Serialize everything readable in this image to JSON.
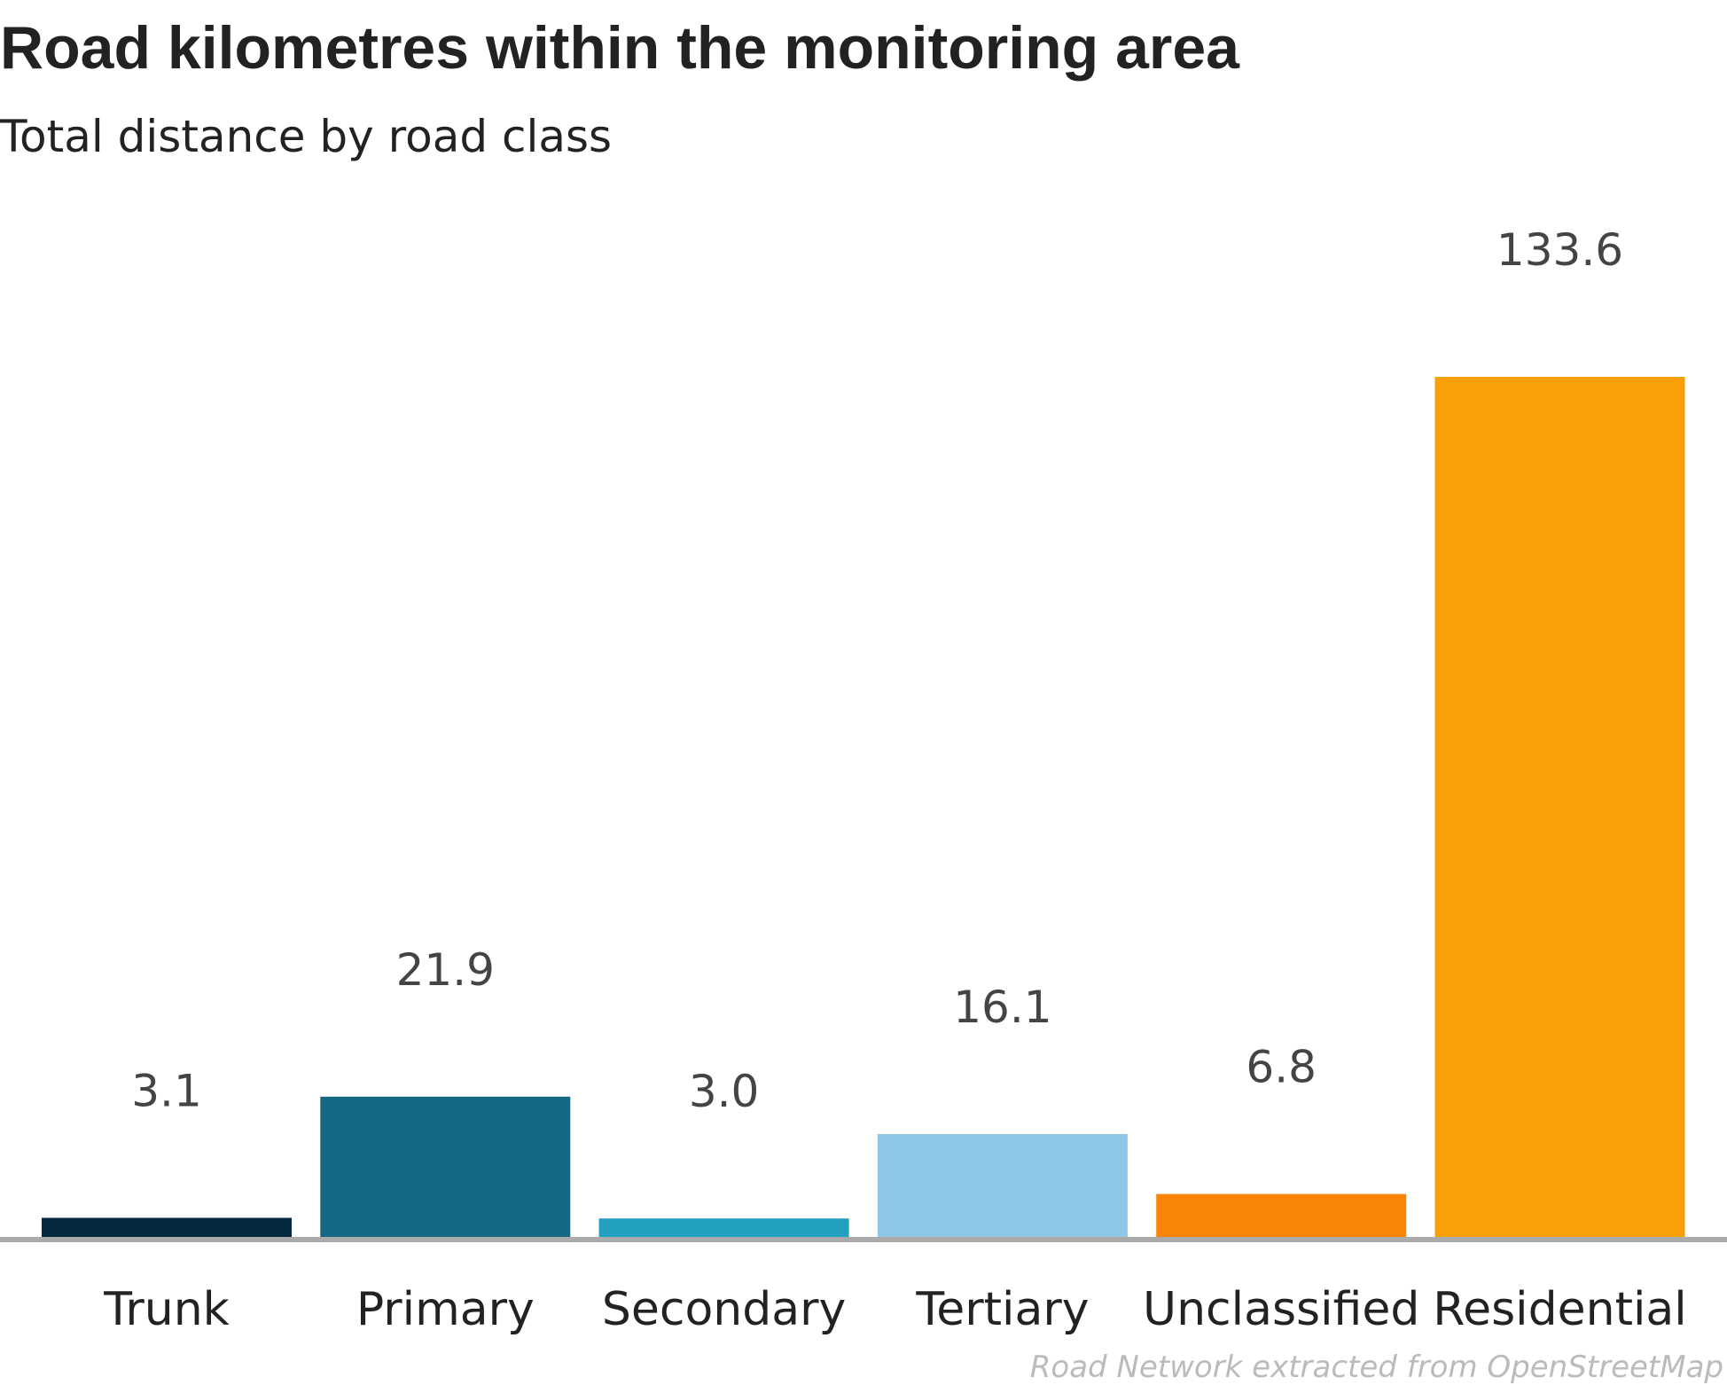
{
  "chart_data": {
    "type": "bar",
    "title": "Road kilometres within the monitoring area",
    "subtitle": "Total distance by road class",
    "xlabel": "",
    "ylabel": "",
    "categories": [
      "Trunk",
      "Primary",
      "Secondary",
      "Tertiary",
      "Unclassified",
      "Residential"
    ],
    "values": [
      3.1,
      21.9,
      3.0,
      16.1,
      6.8,
      133.6
    ],
    "value_labels": [
      "3.1",
      "21.9",
      "3.0",
      "16.1",
      "6.8",
      "133.6"
    ],
    "colors": [
      "#04293f",
      "#136983",
      "#21a0c0",
      "#8fc8e6",
      "#f98408",
      "#fb9f06"
    ],
    "baseline_color": "#aaaaaa",
    "ylim": [
      0,
      133.6
    ],
    "grid": false,
    "legend": "none"
  },
  "caption": "Road Network extracted from OpenStreetMap"
}
